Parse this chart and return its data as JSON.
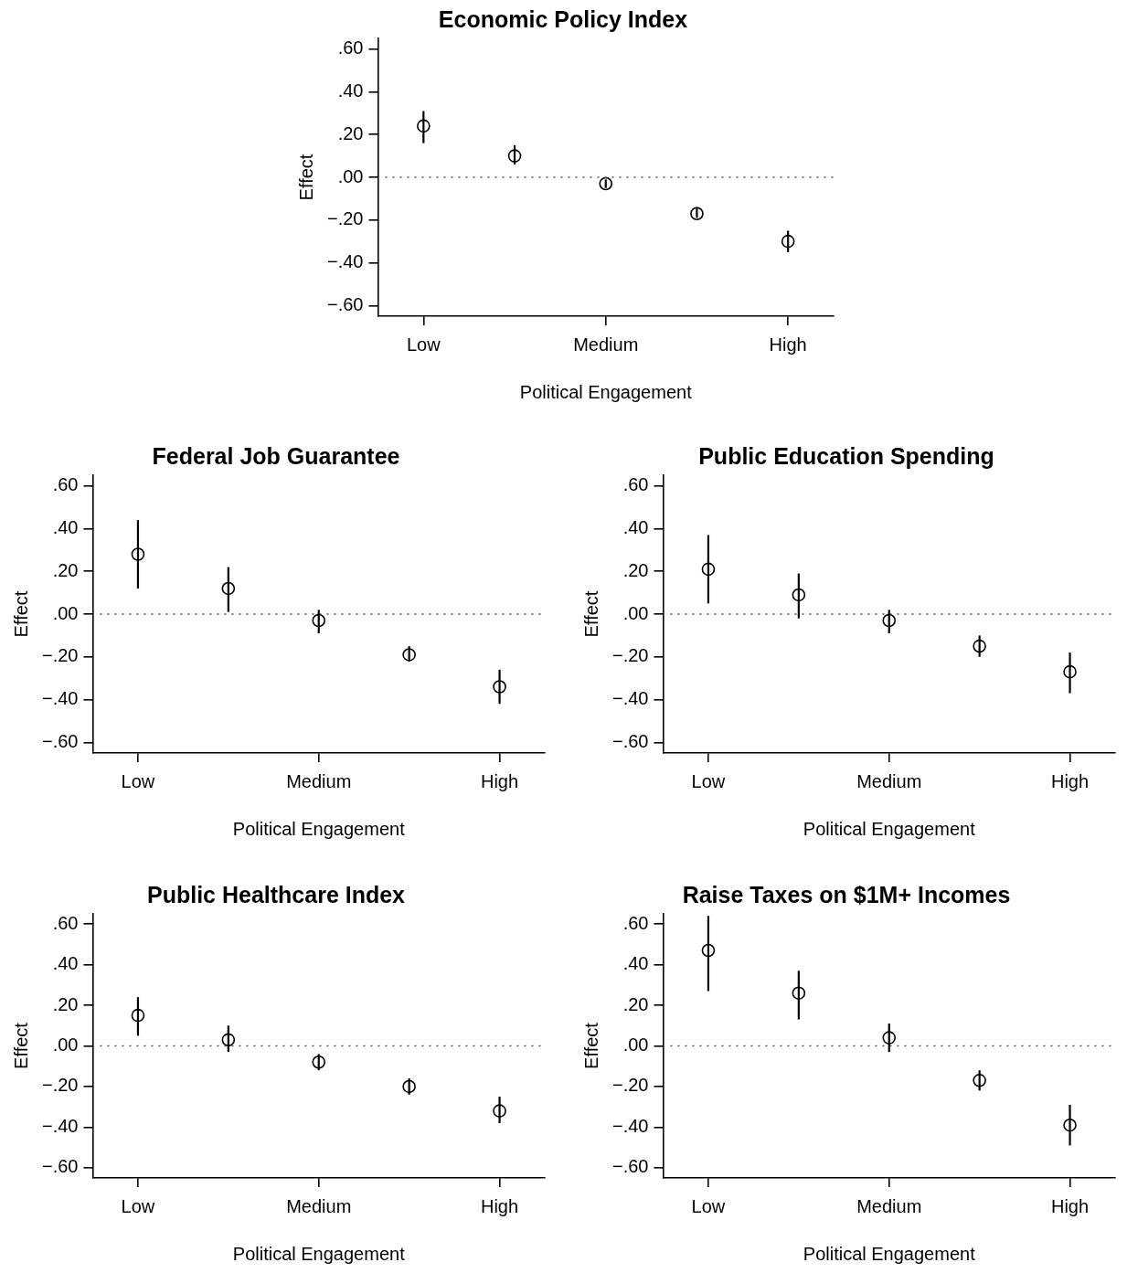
{
  "chart_data": [
    {
      "type": "scatter",
      "title": "Economic Policy Index",
      "xlabel": "Political Engagement",
      "ylabel": "Effect",
      "categories": [
        "Low",
        null,
        "Medium",
        null,
        "High"
      ],
      "values": [
        0.24,
        0.1,
        -0.03,
        -0.17,
        -0.3
      ],
      "errors": [
        [
          0.16,
          0.31
        ],
        [
          0.06,
          0.15
        ],
        [
          -0.05,
          -0.01
        ],
        [
          -0.19,
          -0.14
        ],
        [
          -0.35,
          -0.25
        ]
      ],
      "color": "#000000",
      "marker": "circle",
      "ylim": [
        -0.65,
        0.65
      ],
      "yticks": [
        {
          "value": 0.6,
          "label": ".60"
        },
        {
          "value": 0.4,
          "label": ".40"
        },
        {
          "value": 0.2,
          "label": ".20"
        },
        {
          "value": 0,
          "label": ".00"
        },
        {
          "value": -0.2,
          "label": "−.20"
        },
        {
          "value": -0.4,
          "label": "−.40"
        },
        {
          "value": -0.6,
          "label": "−.60"
        }
      ],
      "ref_lines": [
        {
          "axis": "y",
          "value": 0,
          "line_style": "dotted",
          "color": "#555555"
        }
      ]
    },
    {
      "type": "scatter",
      "title": "Federal Job Guarantee",
      "xlabel": "Political Engagement",
      "ylabel": "Effect",
      "categories": [
        "Low",
        null,
        "Medium",
        null,
        "High"
      ],
      "values": [
        0.28,
        0.12,
        -0.03,
        -0.19,
        -0.34
      ],
      "errors": [
        [
          0.12,
          0.44
        ],
        [
          0.01,
          0.22
        ],
        [
          -0.09,
          0.02
        ],
        [
          -0.22,
          -0.15
        ],
        [
          -0.42,
          -0.26
        ]
      ],
      "color": "#000000",
      "marker": "circle",
      "ylim": [
        -0.65,
        0.65
      ],
      "yticks": [
        {
          "value": 0.6,
          "label": ".60"
        },
        {
          "value": 0.4,
          "label": ".40"
        },
        {
          "value": 0.2,
          "label": ".20"
        },
        {
          "value": 0,
          "label": ".00"
        },
        {
          "value": -0.2,
          "label": "−.20"
        },
        {
          "value": -0.4,
          "label": "−.40"
        },
        {
          "value": -0.6,
          "label": "−.60"
        }
      ],
      "ref_lines": [
        {
          "axis": "y",
          "value": 0,
          "line_style": "dotted",
          "color": "#555555"
        }
      ]
    },
    {
      "type": "scatter",
      "title": "Public Education Spending",
      "xlabel": "Political Engagement",
      "ylabel": "Effect",
      "categories": [
        "Low",
        null,
        "Medium",
        null,
        "High"
      ],
      "values": [
        0.21,
        0.09,
        -0.03,
        -0.15,
        -0.27
      ],
      "errors": [
        [
          0.05,
          0.37
        ],
        [
          -0.02,
          0.19
        ],
        [
          -0.09,
          0.02
        ],
        [
          -0.2,
          -0.1
        ],
        [
          -0.37,
          -0.18
        ]
      ],
      "color": "#000000",
      "marker": "circle",
      "ylim": [
        -0.65,
        0.65
      ],
      "yticks": [
        {
          "value": 0.6,
          "label": ".60"
        },
        {
          "value": 0.4,
          "label": ".40"
        },
        {
          "value": 0.2,
          "label": ".20"
        },
        {
          "value": 0,
          "label": ".00"
        },
        {
          "value": -0.2,
          "label": "−.20"
        },
        {
          "value": -0.4,
          "label": "−.40"
        },
        {
          "value": -0.6,
          "label": "−.60"
        }
      ],
      "ref_lines": [
        {
          "axis": "y",
          "value": 0,
          "line_style": "dotted",
          "color": "#555555"
        }
      ]
    },
    {
      "type": "scatter",
      "title": "Public Healthcare Index",
      "xlabel": "Political Engagement",
      "ylabel": "Effect",
      "categories": [
        "Low",
        null,
        "Medium",
        null,
        "High"
      ],
      "values": [
        0.15,
        0.03,
        -0.08,
        -0.2,
        -0.32
      ],
      "errors": [
        [
          0.05,
          0.24
        ],
        [
          -0.03,
          0.1
        ],
        [
          -0.12,
          -0.04
        ],
        [
          -0.24,
          -0.16
        ],
        [
          -0.38,
          -0.25
        ]
      ],
      "color": "#000000",
      "marker": "circle",
      "ylim": [
        -0.65,
        0.65
      ],
      "yticks": [
        {
          "value": 0.6,
          "label": ".60"
        },
        {
          "value": 0.4,
          "label": ".40"
        },
        {
          "value": 0.2,
          "label": ".20"
        },
        {
          "value": 0,
          "label": ".00"
        },
        {
          "value": -0.2,
          "label": "−.20"
        },
        {
          "value": -0.4,
          "label": "−.40"
        },
        {
          "value": -0.6,
          "label": "−.60"
        }
      ],
      "ref_lines": [
        {
          "axis": "y",
          "value": 0,
          "line_style": "dotted",
          "color": "#555555"
        }
      ]
    },
    {
      "type": "scatter",
      "title": "Raise Taxes on $1M+ Incomes",
      "xlabel": "Political Engagement",
      "ylabel": "Effect",
      "categories": [
        "Low",
        null,
        "Medium",
        null,
        "High"
      ],
      "values": [
        0.47,
        0.26,
        0.04,
        -0.17,
        -0.39
      ],
      "errors": [
        [
          0.27,
          0.64
        ],
        [
          0.13,
          0.37
        ],
        [
          -0.03,
          0.11
        ],
        [
          -0.22,
          -0.12
        ],
        [
          -0.49,
          -0.29
        ]
      ],
      "color": "#000000",
      "marker": "circle",
      "ylim": [
        -0.65,
        0.65
      ],
      "yticks": [
        {
          "value": 0.6,
          "label": ".60"
        },
        {
          "value": 0.4,
          "label": ".40"
        },
        {
          "value": 0.2,
          "label": ".20"
        },
        {
          "value": 0,
          "label": ".00"
        },
        {
          "value": -0.2,
          "label": "−.20"
        },
        {
          "value": -0.4,
          "label": "−.40"
        },
        {
          "value": -0.6,
          "label": "−.60"
        }
      ],
      "ref_lines": [
        {
          "axis": "y",
          "value": 0,
          "line_style": "dotted",
          "color": "#555555"
        }
      ]
    }
  ]
}
